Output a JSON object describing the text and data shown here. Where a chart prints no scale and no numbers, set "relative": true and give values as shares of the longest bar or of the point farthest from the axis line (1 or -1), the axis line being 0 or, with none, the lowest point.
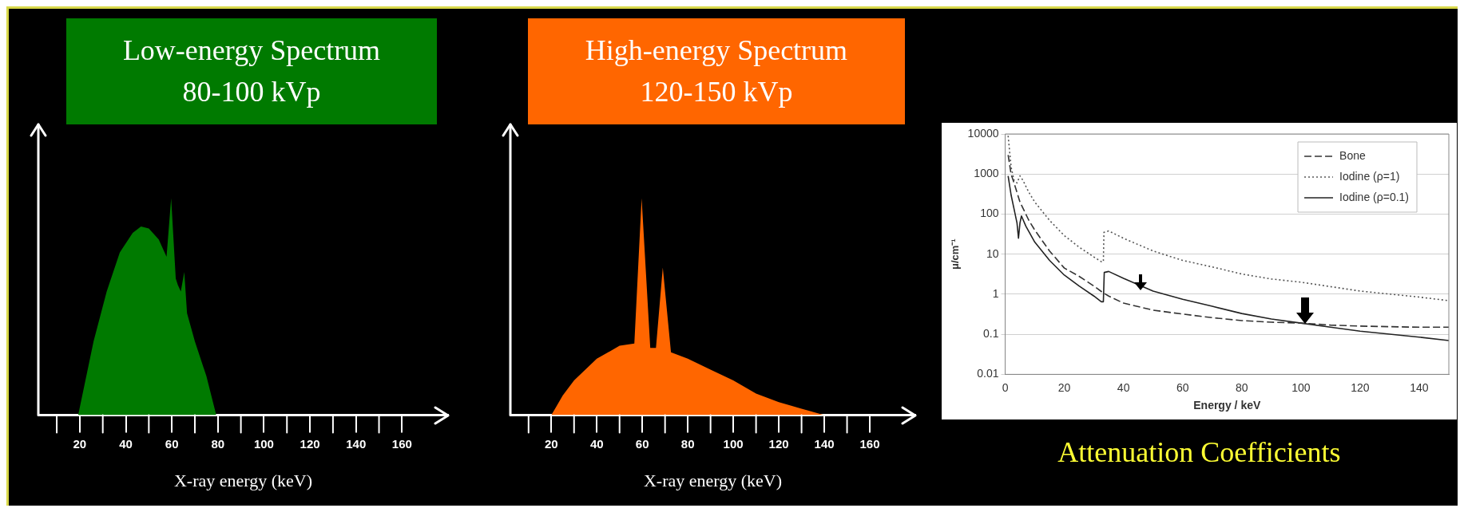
{
  "chart_data": [
    {
      "type": "area",
      "title": "Low-energy Spectrum",
      "subtitle": "80-100 kVp",
      "xlabel": "X-ray energy (keV)",
      "relative": true,
      "tick_labels": "x",
      "xlim": [
        2,
        180
      ],
      "xticks": [
        20,
        40,
        60,
        80,
        100,
        120,
        140,
        160
      ],
      "x": [
        19.3,
        26,
        31.7,
        37.4,
        43,
        46.6,
        50,
        54.3,
        57.7,
        59.7,
        61.7,
        62.6,
        63.9,
        65.4,
        66.6,
        70,
        75,
        79.3
      ],
      "series": [
        {
          "color": "#007a00",
          "values": [
            0,
            0.34,
            0.57,
            0.75,
            0.84,
            0.87,
            0.86,
            0.81,
            0.73,
            1,
            0.63,
            0.6,
            0.57,
            0.66,
            0.47,
            0.34,
            0.18,
            0
          ]
        }
      ]
    },
    {
      "type": "area",
      "title": "High-energy Spectrum",
      "subtitle": "120-150 kVp",
      "xlabel": "X-ray energy (keV)",
      "relative": true,
      "tick_labels": "x",
      "xlim": [
        2,
        180
      ],
      "xticks": [
        20,
        40,
        60,
        80,
        100,
        120,
        140,
        160
      ],
      "x": [
        20,
        25,
        30,
        40,
        50,
        56.5,
        59.7,
        63.5,
        66,
        69,
        72.6,
        80,
        90,
        100,
        110,
        120,
        130,
        140
      ],
      "series": [
        {
          "color": "#ff6600",
          "values": [
            0,
            0.09,
            0.16,
            0.26,
            0.32,
            0.33,
            1,
            0.31,
            0.31,
            0.68,
            0.29,
            0.26,
            0.21,
            0.16,
            0.1,
            0.06,
            0.03,
            0
          ]
        }
      ]
    },
    {
      "type": "line",
      "title": "Attenuation Coefficients",
      "xlabel": "Energy / keV",
      "ylabel": "μ/cm⁻¹",
      "log": "y",
      "grid": "y",
      "legend": "top right",
      "xlim": [
        0,
        150
      ],
      "xticks": [
        0,
        20,
        40,
        60,
        80,
        100,
        120,
        140
      ],
      "ylim": [
        0.01,
        10000
      ],
      "yticks": [
        0.01,
        0.1,
        1,
        10,
        100,
        1000,
        10000
      ],
      "series": [
        {
          "name": "Bone",
          "color": "#333333",
          "line_style": "dashed",
          "x": [
            1,
            2,
            3,
            5,
            8,
            10,
            15,
            20,
            25,
            30,
            33,
            35,
            40,
            50,
            60,
            70,
            80,
            90,
            100,
            110,
            120,
            140,
            150
          ],
          "values": [
            3000,
            1000,
            600,
            200,
            70,
            40,
            12,
            4.5,
            2.8,
            1.6,
            1.1,
            0.9,
            0.6,
            0.4,
            0.32,
            0.26,
            0.22,
            0.2,
            0.19,
            0.17,
            0.16,
            0.15,
            0.15
          ]
        },
        {
          "name": "Iodine (ρ=1)",
          "color": "#555555",
          "line_style": "dotted",
          "x": [
            1,
            2,
            3,
            4,
            5,
            6,
            8,
            10,
            15,
            20,
            25,
            30,
            32.5,
            33.2,
            33.4,
            35,
            40,
            50,
            60,
            70,
            80,
            90,
            100,
            120,
            140,
            150
          ],
          "values": [
            9000,
            1500,
            700,
            600,
            900,
            700,
            350,
            200,
            70,
            29,
            15,
            8.5,
            6.5,
            6.5,
            35,
            38,
            25,
            12,
            7,
            4.8,
            3.2,
            2.4,
            2,
            1.2,
            0.85,
            0.69
          ]
        },
        {
          "name": "Iodine (ρ=0.1)",
          "color": "#222222",
          "line_style": "solid",
          "x": [
            1,
            2,
            4,
            4.5,
            5,
            5.5,
            7,
            10,
            15,
            20,
            25,
            30,
            32.5,
            33.2,
            33.5,
            35,
            40,
            50,
            60,
            70,
            80,
            90,
            100,
            110,
            120,
            140,
            150
          ],
          "values": [
            900,
            300,
            60,
            25,
            60,
            90,
            50,
            20,
            7,
            3,
            1.6,
            0.9,
            0.65,
            0.65,
            3.5,
            3.7,
            2.5,
            1.2,
            0.75,
            0.5,
            0.33,
            0.24,
            0.19,
            0.15,
            0.12,
            0.085,
            0.07
          ]
        }
      ]
    }
  ]
}
